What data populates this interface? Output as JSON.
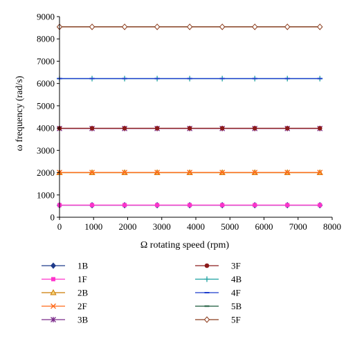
{
  "chart_data": {
    "type": "line",
    "title": "",
    "xlabel": "Ω rotating speed (rpm)",
    "ylabel": "ω frequency (rad/s)",
    "xlim": [
      0,
      8000
    ],
    "ylim": [
      0,
      9000
    ],
    "xticks": [
      0,
      1000,
      2000,
      3000,
      4000,
      5000,
      6000,
      7000,
      8000
    ],
    "yticks": [
      0,
      1000,
      2000,
      3000,
      4000,
      5000,
      6000,
      7000,
      8000,
      9000
    ],
    "grid": false,
    "legend_placement": "bottom",
    "x": [
      0,
      955,
      1910,
      2865,
      3820,
      4775,
      5730,
      6685,
      7640
    ],
    "series": [
      {
        "name": "1B",
        "color": "#1f3a8a",
        "marker": "diamond",
        "values": [
          540,
          540,
          540,
          540,
          540,
          540,
          540,
          540,
          540
        ]
      },
      {
        "name": "1F",
        "color": "#ff33cc",
        "marker": "square",
        "values": [
          545,
          545,
          545,
          545,
          545,
          545,
          545,
          545,
          545
        ]
      },
      {
        "name": "2B",
        "color": "#cc7a00",
        "marker": "triangle",
        "values": [
          2000,
          2000,
          2000,
          2000,
          2000,
          2000,
          2000,
          2000,
          2000
        ]
      },
      {
        "name": "2F",
        "color": "#ff6a1a",
        "marker": "x",
        "values": [
          2010,
          2010,
          2010,
          2010,
          2010,
          2010,
          2010,
          2010,
          2010
        ]
      },
      {
        "name": "3B",
        "color": "#7a2a8a",
        "marker": "star",
        "values": [
          3980,
          3980,
          3980,
          3980,
          3980,
          3980,
          3980,
          3980,
          3980
        ]
      },
      {
        "name": "3F",
        "color": "#8b1a1a",
        "marker": "circle",
        "values": [
          3990,
          3990,
          3990,
          3990,
          3990,
          3990,
          3990,
          3990,
          3990
        ]
      },
      {
        "name": "4B",
        "color": "#1aa0a0",
        "marker": "plus",
        "values": [
          6220,
          6220,
          6220,
          6220,
          6220,
          6220,
          6220,
          6220,
          6220
        ]
      },
      {
        "name": "4F",
        "color": "#1a3acc",
        "marker": "dash",
        "values": [
          6220,
          6220,
          6220,
          6220,
          6220,
          6220,
          6220,
          6220,
          6220
        ]
      },
      {
        "name": "5B",
        "color": "#1a5a3a",
        "marker": "dash",
        "values": [
          8540,
          8540,
          8540,
          8540,
          8540,
          8540,
          8540,
          8540,
          8540
        ]
      },
      {
        "name": "5F",
        "color": "#8b3a1a",
        "marker": "diamond-open",
        "values": [
          8540,
          8540,
          8540,
          8540,
          8540,
          8540,
          8540,
          8540,
          8540
        ]
      }
    ]
  }
}
